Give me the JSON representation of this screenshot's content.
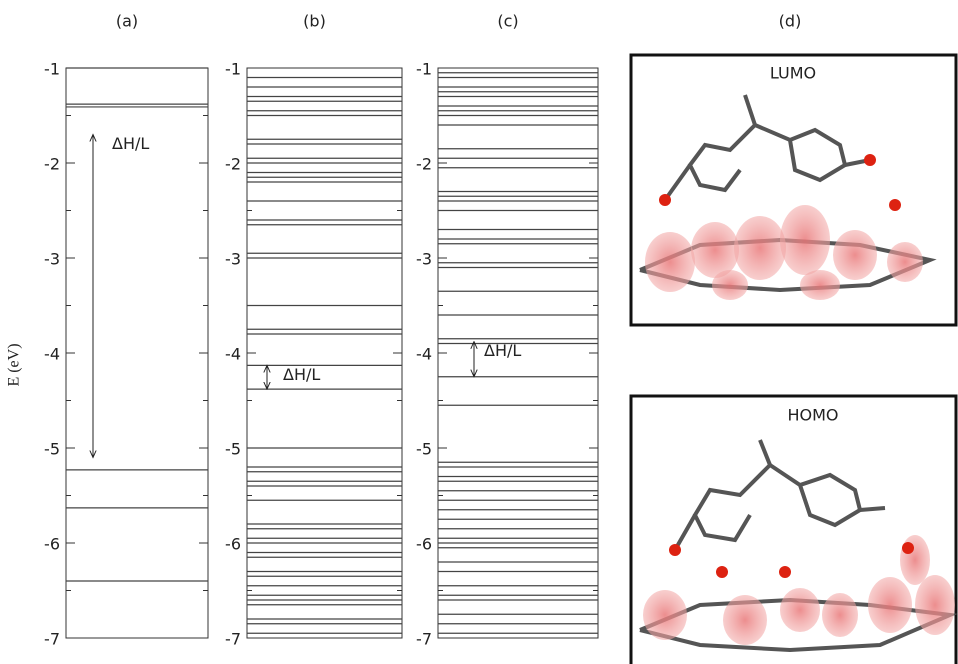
{
  "chart_data": [
    {
      "type": "levels",
      "title": "(a)",
      "ylabel": "E (eV)",
      "ylim": [
        -7,
        -1
      ],
      "yticks": [
        -1,
        -2,
        -3,
        -4,
        -5,
        -6,
        -7
      ],
      "minor_yticks": [
        -1.5,
        -2.5,
        -3.5,
        -4.5,
        -5.5,
        -6.5
      ],
      "color": "#444444",
      "levels": [
        -1.0,
        -1.38,
        -1.41,
        -5.23,
        -5.63,
        -6.4
      ],
      "gap": [
        -1.7,
        -5.1
      ],
      "gap_label": "ΔH/L"
    },
    {
      "type": "levels",
      "title": "(b)",
      "ylim": [
        -7,
        -1
      ],
      "yticks": [
        -1,
        -2,
        -3,
        -4,
        -5,
        -6,
        -7
      ],
      "minor_yticks": [
        -1.5,
        -2.5,
        -3.5,
        -4.5,
        -5.5,
        -6.5
      ],
      "color": "#444444",
      "levels": [
        -1.1,
        -1.2,
        -1.3,
        -1.35,
        -1.45,
        -1.5,
        -1.75,
        -1.8,
        -1.95,
        -2.0,
        -2.1,
        -2.15,
        -2.2,
        -2.4,
        -2.6,
        -2.65,
        -2.95,
        -3.0,
        -3.5,
        -3.75,
        -3.8,
        -4.13,
        -4.38,
        -5.0,
        -5.2,
        -5.25,
        -5.35,
        -5.4,
        -5.55,
        -5.8,
        -5.85,
        -5.95,
        -6.0,
        -6.1,
        -6.15,
        -6.3,
        -6.35,
        -6.45,
        -6.55,
        -6.6,
        -6.65,
        -6.8,
        -6.85,
        -6.95
      ],
      "gap": [
        -4.13,
        -4.38
      ],
      "gap_label": "ΔH/L"
    },
    {
      "type": "levels",
      "title": "(c)",
      "ylim": [
        -7,
        -1
      ],
      "yticks": [
        -1,
        -2,
        -3,
        -4,
        -5,
        -6,
        -7
      ],
      "minor_yticks": [
        -1.5,
        -2.5,
        -3.5,
        -4.5,
        -5.5,
        -6.5
      ],
      "color": "#444444",
      "levels": [
        -1.05,
        -1.1,
        -1.2,
        -1.25,
        -1.3,
        -1.4,
        -1.45,
        -1.5,
        -1.6,
        -1.85,
        -1.95,
        -2.05,
        -2.3,
        -2.35,
        -2.4,
        -2.5,
        -2.7,
        -2.8,
        -2.85,
        -3.05,
        -3.1,
        -3.35,
        -3.6,
        -3.85,
        -3.9,
        -4.25,
        -4.55,
        -5.15,
        -5.2,
        -5.3,
        -5.35,
        -5.45,
        -5.55,
        -5.65,
        -5.75,
        -5.85,
        -5.95,
        -6.0,
        -6.05,
        -6.2,
        -6.3,
        -6.45,
        -6.55,
        -6.6,
        -6.75,
        -6.85,
        -6.95
      ],
      "gap": [
        -3.88,
        -4.25
      ],
      "gap_label": "ΔH/L"
    }
  ],
  "images": {
    "title": "(d)",
    "panels": [
      {
        "label": "LUMO"
      },
      {
        "label": "HOMO"
      }
    ]
  }
}
